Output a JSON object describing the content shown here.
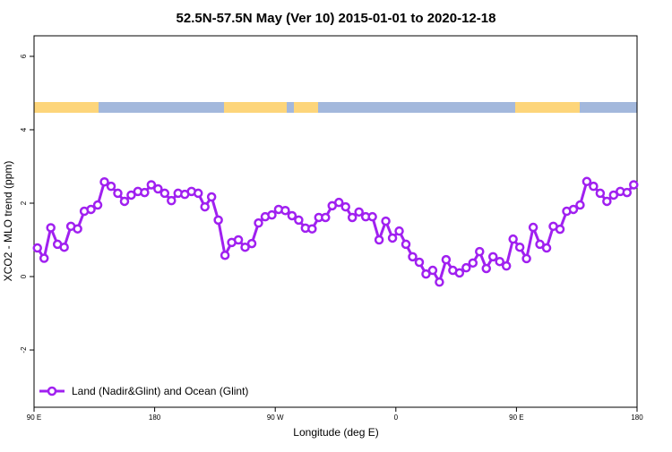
{
  "chart_data": {
    "type": "line",
    "title": "52.5N-57.5N May (Ver 10)   2015-01-01 to 2020-12-18",
    "x_label": "Longitude (deg E)",
    "y_label": "XCO2 - MLO trend (ppm)",
    "x": [
      92.5,
      97.5,
      102.5,
      107.5,
      112.5,
      117.5,
      122.5,
      127.5,
      132.5,
      137.5,
      142.5,
      147.5,
      152.5,
      157.5,
      162.5,
      167.5,
      172.5,
      177.5,
      182.5,
      187.5,
      192.5,
      197.5,
      202.5,
      207.5,
      212.5,
      217.5,
      222.5,
      227.5,
      232.5,
      237.5,
      242.5,
      247.5,
      252.5,
      257.5,
      262.5,
      267.5,
      272.5,
      277.5,
      282.5,
      287.5,
      292.5,
      297.5,
      302.5,
      307.5,
      312.5,
      317.5,
      322.5,
      327.5,
      332.5,
      337.5,
      342.5,
      347.5,
      352.5,
      357.5,
      362.5,
      367.5,
      372.5,
      377.5,
      382.5,
      387.5,
      392.5,
      397.5,
      402.5,
      407.5,
      412.5,
      417.5,
      422.5,
      427.5,
      432.5,
      437.5,
      442.5,
      447.5,
      452.5,
      457.5,
      462.5,
      467.5,
      472.5,
      477.5,
      482.5,
      487.5,
      492.5,
      497.5,
      502.5,
      507.5,
      512.5,
      517.5,
      522.5,
      527.5,
      532.5,
      537.5
    ],
    "series": [
      {
        "name": "Land (Nadir&Glint) and Ocean (Glint)",
        "color": "#a020f0",
        "values": [
          0.78,
          0.5,
          1.33,
          0.88,
          0.8,
          1.37,
          1.3,
          1.78,
          1.83,
          1.95,
          2.58,
          2.46,
          2.27,
          2.05,
          2.22,
          2.32,
          2.29,
          2.5,
          2.39,
          2.27,
          2.07,
          2.27,
          2.24,
          2.32,
          2.27,
          1.9,
          2.17,
          1.54,
          0.58,
          0.93,
          1.0,
          0.8,
          0.9,
          1.46,
          1.63,
          1.68,
          1.83,
          1.8,
          1.66,
          1.54,
          1.32,
          1.3,
          1.61,
          1.61,
          1.93,
          2.02,
          1.9,
          1.61,
          1.76,
          1.63,
          1.63,
          1.0,
          1.51,
          1.05,
          1.24,
          0.88,
          0.54,
          0.39,
          0.07,
          0.17,
          -0.15,
          0.46,
          0.17,
          0.1,
          0.24,
          0.37,
          0.68,
          0.22,
          0.54,
          0.41,
          0.29,
          1.02,
          0.8,
          0.49,
          1.34,
          0.88,
          0.78,
          1.37,
          1.29,
          1.78,
          1.83,
          1.95,
          2.59,
          2.46,
          2.27,
          2.05,
          2.22,
          2.32,
          2.29,
          2.5
        ]
      }
    ],
    "xlim": [
      90,
      540
    ],
    "xticks": [
      {
        "value": 90,
        "label": "90 E"
      },
      180,
      {
        "value": 270,
        "label": "90 W"
      },
      {
        "value": 360,
        "label": "0"
      },
      {
        "value": 450,
        "label": "90 E"
      },
      {
        "value": 540,
        "label": "180"
      }
    ],
    "ylim": [
      -3.56,
      6.56
    ],
    "yticks": [
      -2,
      0,
      2,
      4,
      6
    ],
    "legend": "bottom-left"
  }
}
